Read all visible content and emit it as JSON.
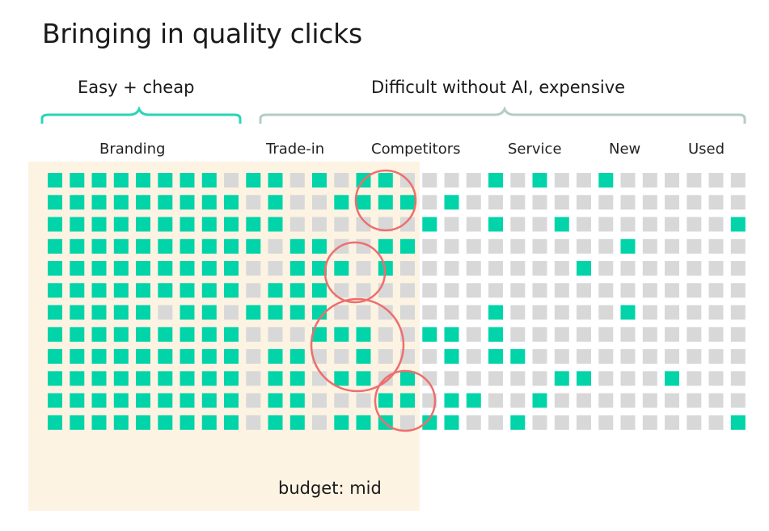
{
  "title": "Bringing in quality clicks",
  "groups": [
    {
      "label": "Easy + cheap",
      "color": "#2ad4b8"
    },
    {
      "label": "Difficult without AI, expensive",
      "color": "#b4ccc6"
    }
  ],
  "categories": [
    "Branding",
    "Trade-in",
    "Competitors",
    "Service",
    "New",
    "Used"
  ],
  "budget_label": "budget: mid",
  "colors": {
    "on": "#00d4a8",
    "off": "#d8d8d8",
    "budget_bg": "#fdf3e3",
    "circle": "#ee6e6e"
  },
  "grid": {
    "columns": 32,
    "rows": [
      "11111111011010110000101001000000",
      "11111111101001111010000000000000",
      "11111111111000000100100100000001",
      "11111111110110011000000000100000",
      "11111111100111010000000010000000",
      "11111111101110000000000000000000",
      "11111011011110000000100000100000",
      "11111111100011100110100000000000",
      "11111111101100100010110000000000",
      "11111111101101101000000110001000",
      "11111111101100011011001000000000",
      "11111111101101110110010000000001"
    ]
  },
  "highlights": [
    {
      "note": "circle 1"
    },
    {
      "note": "circle 2"
    },
    {
      "note": "circle 3"
    },
    {
      "note": "circle 4"
    }
  ]
}
